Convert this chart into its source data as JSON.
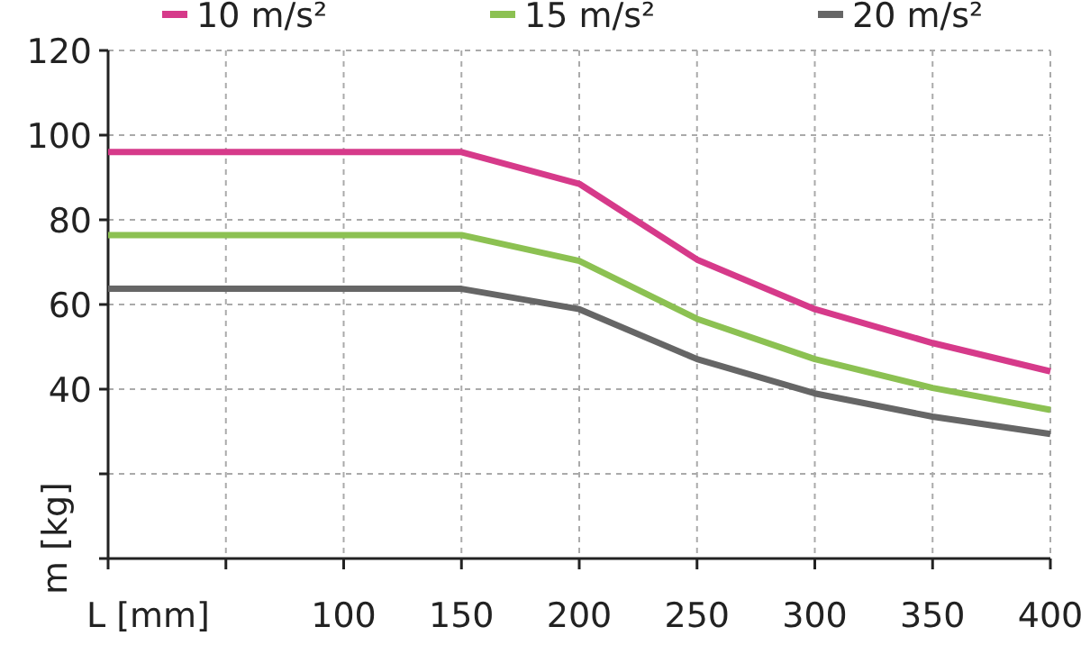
{
  "chart_data": {
    "type": "line",
    "xlabel": "L [mm]",
    "ylabel": "m [kg]",
    "x": [
      0,
      150,
      200,
      250,
      300,
      350,
      400
    ],
    "series": [
      {
        "name": "10 m/s²",
        "color": "#d63a8a",
        "values": [
          96,
          96,
          88.5,
          70.6,
          58.9,
          50.9,
          44.2
        ]
      },
      {
        "name": "15 m/s²",
        "color": "#8cc152",
        "values": [
          76.4,
          76.4,
          70.3,
          56.6,
          47.1,
          40.3,
          35.1
        ]
      },
      {
        "name": "20 m/s²",
        "color": "#666666",
        "values": [
          63.7,
          63.7,
          58.9,
          47.1,
          39,
          33.5,
          29.4
        ]
      }
    ],
    "xlim": [
      0,
      400
    ],
    "xticks": [
      {
        "value": 0,
        "label": null
      },
      {
        "value": 50,
        "label": null
      },
      100,
      150,
      200,
      250,
      300,
      350,
      400
    ],
    "ylim": [
      0,
      120
    ],
    "yticks": [
      {
        "value": 0,
        "label": null
      },
      {
        "value": 20,
        "label": null
      },
      40,
      60,
      80,
      100,
      120
    ],
    "grid": true,
    "legend": "top",
    "marker": "none",
    "line_style": "solid"
  }
}
